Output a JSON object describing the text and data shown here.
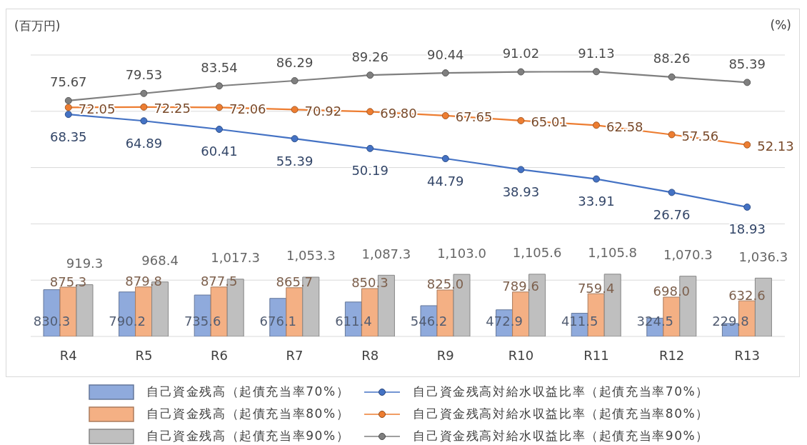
{
  "chart_data": {
    "type": "bar",
    "ylabel": "(百万円)",
    "y2label": "(%)",
    "categories": [
      "R4",
      "R5",
      "R6",
      "R7",
      "R8",
      "R9",
      "R10",
      "R11",
      "R12",
      "R13"
    ],
    "series": [
      {
        "name": "自己資金残高（起債充当率70%）",
        "color": "#8faadc",
        "values": [
          830.3,
          790.2,
          735.6,
          676.1,
          611.4,
          546.2,
          472.9,
          411.5,
          324.5,
          229.8
        ],
        "value_labels": [
          "830.3",
          "790.2",
          "735.6",
          "676.1",
          "611.4",
          "546.2",
          "472.9",
          "411.5",
          "324.5",
          "229.8"
        ]
      },
      {
        "name": "自己資金残高（起債充当率80%）",
        "color": "#f4b084",
        "values": [
          875.3,
          879.8,
          877.5,
          865.7,
          850.3,
          825.0,
          789.6,
          759.4,
          698.0,
          632.6
        ],
        "value_labels": [
          "875.3",
          "879.8",
          "877.5",
          "865.7",
          "850.3",
          "825.0",
          "789.6",
          "759.4",
          "698.0",
          "632.6"
        ]
      },
      {
        "name": "自己資金残高（起債充当率90%）",
        "color": "#bfbfbf",
        "values": [
          919.3,
          968.4,
          1017.3,
          1053.3,
          1087.3,
          1103.0,
          1105.6,
          1105.8,
          1070.3,
          1036.3
        ],
        "value_labels": [
          "919.3",
          "968.4",
          "1,017.3",
          "1,053.3",
          "1,087.3",
          "1,103.0",
          "1,105.6",
          "1,105.8",
          "1,070.3",
          "1,036.3"
        ]
      },
      {
        "type": "line",
        "axis": "y2",
        "name": "自己資金残高対給水収益比率（起債充当率70%）",
        "color": "#4472c4",
        "values": [
          68.35,
          64.89,
          60.41,
          55.39,
          50.19,
          44.79,
          38.93,
          33.91,
          26.76,
          18.93
        ],
        "value_labels": [
          "68.35",
          "64.89",
          "60.41",
          "55.39",
          "50.19",
          "44.79",
          "38.93",
          "33.91",
          "26.76",
          "18.93"
        ]
      },
      {
        "type": "line",
        "axis": "y2",
        "name": "自己資金残高対給水収益比率（起債充当率80%）",
        "color": "#ed7d31",
        "values": [
          72.05,
          72.25,
          72.06,
          70.92,
          69.8,
          67.65,
          65.01,
          62.58,
          57.56,
          52.13
        ],
        "value_labels": [
          "72.05",
          "72.25",
          "72.06",
          "70.92",
          "69.80",
          "67.65",
          "65.01",
          "62.58",
          "57.56",
          "52.13"
        ]
      },
      {
        "type": "line",
        "axis": "y2",
        "name": "自己資金残高対給水収益比率（起債充当率90%）",
        "color": "#7f7f7f",
        "values": [
          75.67,
          79.53,
          83.54,
          86.29,
          89.26,
          90.44,
          91.02,
          91.13,
          88.26,
          85.39
        ],
        "value_labels": [
          "75.67",
          "79.53",
          "83.54",
          "86.29",
          "89.26",
          "90.44",
          "91.02",
          "91.13",
          "88.26",
          "85.39"
        ]
      }
    ],
    "ylim": [
      0,
      5000
    ],
    "y2lim": [
      -50,
      100
    ],
    "tick_labels": "x",
    "grid": "y",
    "legend": "bottom",
    "marker": "circle"
  }
}
